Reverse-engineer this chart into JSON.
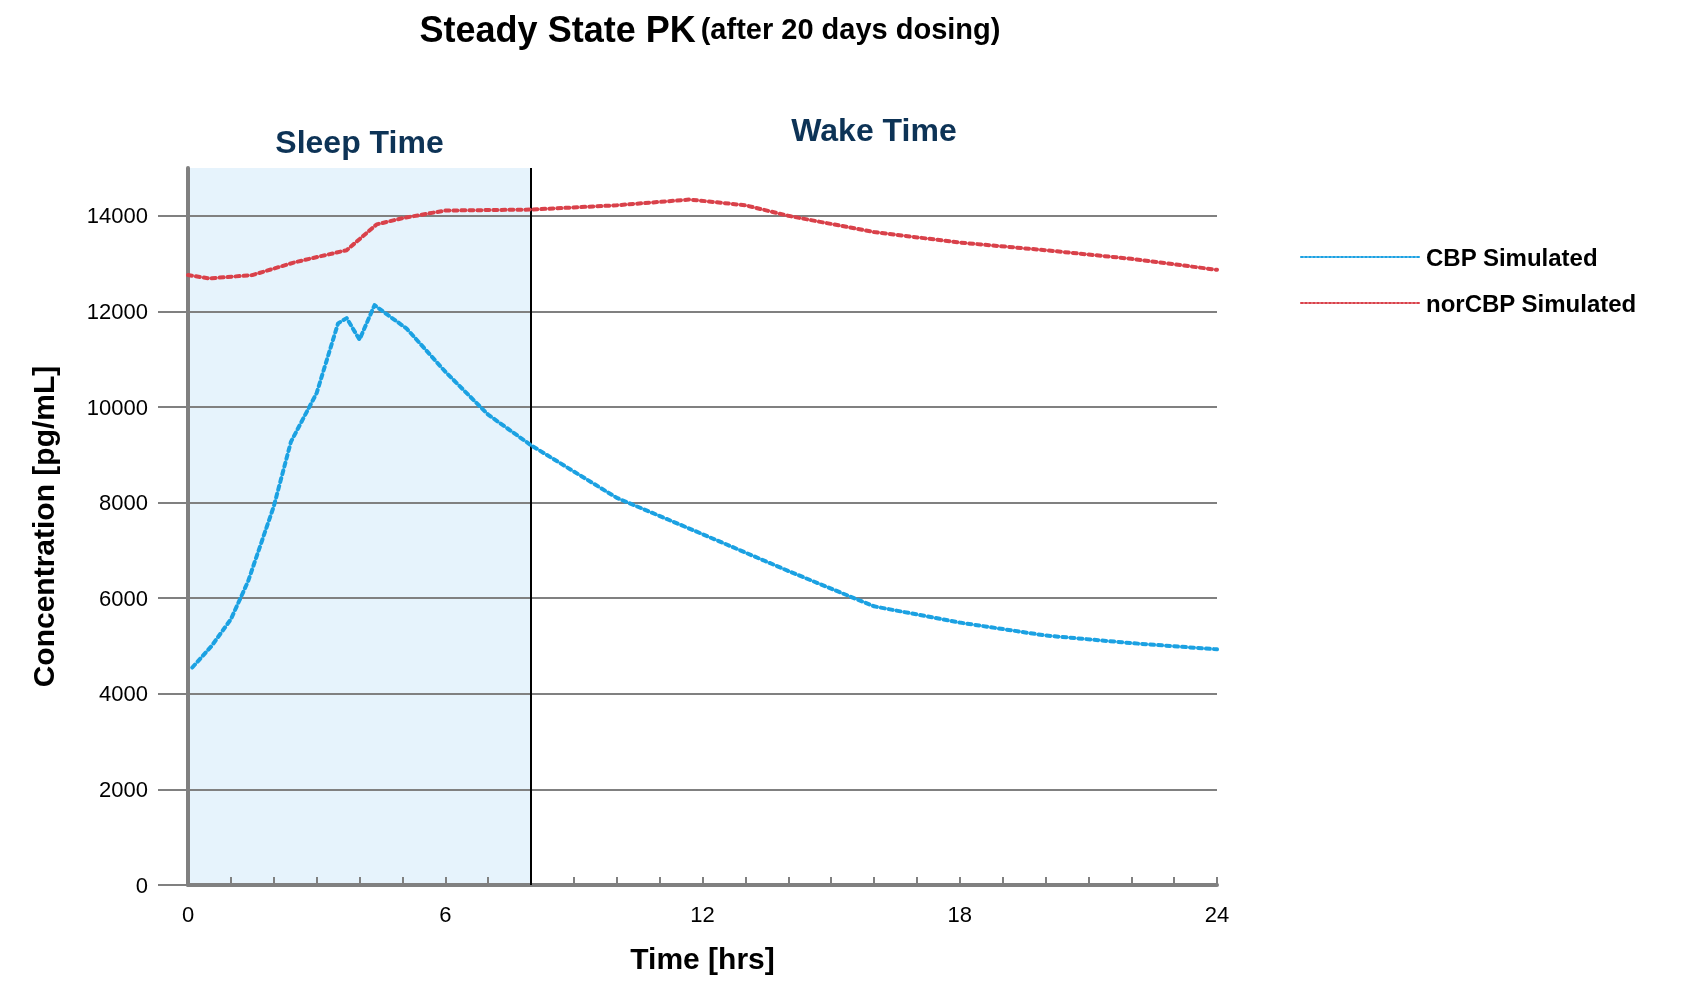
{
  "chart_data": {
    "type": "line",
    "title": "Steady State PK",
    "subtitle": "(after 20 days dosing)",
    "xlabel": "Time [hrs]",
    "ylabel": "Concentration [pg/mL]",
    "series": [
      {
        "name": "CBP Simulated",
        "color": "#1ba1e2",
        "x": [
          0.1,
          0.55,
          1,
          1.4,
          2,
          2.4,
          3,
          3.5,
          3.7,
          4,
          4.35,
          4.7,
          5.1,
          6,
          7,
          8,
          10,
          12,
          14,
          16,
          18,
          20,
          22,
          24
        ],
        "values": [
          4550,
          5000,
          5560,
          6350,
          7920,
          9270,
          10290,
          11750,
          11860,
          11410,
          12130,
          11900,
          11640,
          10740,
          9840,
          9200,
          8100,
          7340,
          6570,
          5830,
          5490,
          5220,
          5060,
          4930
        ]
      },
      {
        "name": "norCBP Simulated",
        "color": "#d9414a",
        "x": [
          0,
          0.5,
          1.5,
          2.5,
          3.7,
          4.4,
          5,
          6,
          8,
          10,
          11.7,
          13,
          14,
          16,
          18,
          20,
          22,
          24
        ],
        "values": [
          12760,
          12690,
          12760,
          13030,
          13280,
          13820,
          13950,
          14110,
          14130,
          14220,
          14340,
          14220,
          14000,
          13660,
          13440,
          13280,
          13100,
          12870
        ]
      }
    ],
    "xlim": [
      0,
      24
    ],
    "xticks": [
      0,
      {
        "value": 1,
        "label": null
      },
      {
        "value": 2,
        "label": null
      },
      {
        "value": 3,
        "label": null
      },
      {
        "value": 4,
        "label": null
      },
      {
        "value": 5,
        "label": null
      },
      6,
      {
        "value": 7,
        "label": null
      },
      {
        "value": 8,
        "label": null
      },
      {
        "value": 9,
        "label": null
      },
      {
        "value": 10,
        "label": null
      },
      {
        "value": 11,
        "label": null
      },
      12,
      {
        "value": 13,
        "label": null
      },
      {
        "value": 14,
        "label": null
      },
      {
        "value": 15,
        "label": null
      },
      {
        "value": 16,
        "label": null
      },
      {
        "value": 17,
        "label": null
      },
      18,
      {
        "value": 19,
        "label": null
      },
      {
        "value": 20,
        "label": null
      },
      {
        "value": 21,
        "label": null
      },
      {
        "value": 22,
        "label": null
      },
      {
        "value": 23,
        "label": null
      },
      24
    ],
    "ylim": [
      0,
      15000
    ],
    "yticks": [
      0,
      2000,
      4000,
      6000,
      8000,
      10000,
      12000,
      14000
    ],
    "bands": [
      {
        "axis": "x",
        "from": 0,
        "to": 8,
        "label": "Sleep Time",
        "color": "#e6f3fc"
      }
    ],
    "annotations": [
      "Wake Time"
    ],
    "ref_lines": [
      {
        "axis": "x",
        "value": 8,
        "color": "#000000",
        "line_style": "solid"
      }
    ],
    "grid": "y",
    "legend": "right",
    "marker": "none",
    "line_style": "dotted"
  }
}
